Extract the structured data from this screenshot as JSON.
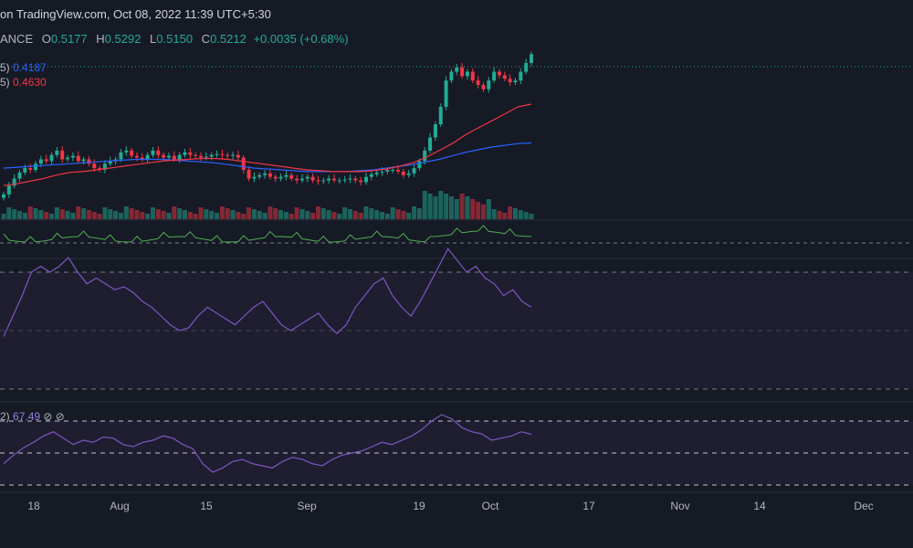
{
  "header": {
    "published": "on TradingView.com, Oct 08, 2022 11:39 UTC+5:30",
    "symbol_fragment": "ANCE",
    "ohlc": [
      {
        "label": "O",
        "value": "0.5177"
      },
      {
        "label": "H",
        "value": "0.5292"
      },
      {
        "label": "L",
        "value": "0.5150"
      },
      {
        "label": "C",
        "value": "0.5212"
      }
    ],
    "change": "+0.0035 (+0.68%)"
  },
  "moving_averages": [
    {
      "label_fragment": "5)",
      "value": "0.4187",
      "color": "#2962ff"
    },
    {
      "label_fragment": "5)",
      "value": "0.4630",
      "color": "#f23645"
    }
  ],
  "stoch_legend": {
    "label_fragment": "2)",
    "value": "67.49",
    "icons": [
      "eye-off-icon",
      "eye-off-icon"
    ]
  },
  "colors": {
    "background": "#161a25",
    "up": "#22ab94",
    "down": "#f23645",
    "ma_slow": "#2962ff",
    "ma_fast": "#f23645",
    "oscillator": "#7e57c2",
    "osc_band": "#26233a",
    "money_flow": "#4caf50"
  },
  "chart_data": {
    "type": "candlestick",
    "x_tick_labels": [
      "18",
      "Aug",
      "15",
      "Sep",
      "19",
      "Oct",
      "17",
      "Nov",
      "14",
      "Dec"
    ],
    "price_range_visible": [
      0.34,
      0.535
    ],
    "last_close": 0.5212,
    "candles_close_approx": [
      0.36,
      0.37,
      0.378,
      0.385,
      0.39,
      0.388,
      0.395,
      0.4,
      0.398,
      0.405,
      0.41,
      0.4,
      0.402,
      0.404,
      0.398,
      0.4,
      0.395,
      0.39,
      0.388,
      0.395,
      0.398,
      0.4,
      0.408,
      0.41,
      0.404,
      0.402,
      0.4,
      0.405,
      0.41,
      0.405,
      0.402,
      0.404,
      0.4,
      0.405,
      0.408,
      0.405,
      0.404,
      0.402,
      0.403,
      0.405,
      0.406,
      0.405,
      0.404,
      0.405,
      0.402,
      0.388,
      0.378,
      0.38,
      0.382,
      0.384,
      0.38,
      0.378,
      0.38,
      0.382,
      0.378,
      0.376,
      0.378,
      0.38,
      0.376,
      0.375,
      0.376,
      0.378,
      0.376,
      0.376,
      0.377,
      0.378,
      0.376,
      0.374,
      0.38,
      0.383,
      0.385,
      0.386,
      0.388,
      0.388,
      0.386,
      0.382,
      0.384,
      0.39,
      0.398,
      0.41,
      0.425,
      0.44,
      0.46,
      0.49,
      0.5,
      0.505,
      0.495,
      0.5,
      0.49,
      0.485,
      0.48,
      0.49,
      0.5,
      0.496,
      0.492,
      0.488,
      0.49,
      0.5,
      0.51,
      0.52
    ],
    "ma_fast_approx": [
      0.37,
      0.372,
      0.375,
      0.378,
      0.382,
      0.385,
      0.386,
      0.388,
      0.39,
      0.392,
      0.394,
      0.396,
      0.398,
      0.399,
      0.4,
      0.401,
      0.401,
      0.4,
      0.398,
      0.396,
      0.394,
      0.392,
      0.39,
      0.388,
      0.387,
      0.386,
      0.386,
      0.386,
      0.387,
      0.389,
      0.392,
      0.396,
      0.402,
      0.41,
      0.418,
      0.428,
      0.436,
      0.444,
      0.452,
      0.46,
      0.463
    ],
    "ma_slow_approx": [
      0.39,
      0.391,
      0.392,
      0.393,
      0.394,
      0.395,
      0.396,
      0.397,
      0.398,
      0.399,
      0.4,
      0.4,
      0.4,
      0.399,
      0.398,
      0.397,
      0.396,
      0.394,
      0.392,
      0.39,
      0.389,
      0.388,
      0.387,
      0.386,
      0.386,
      0.386,
      0.386,
      0.387,
      0.388,
      0.39,
      0.392,
      0.394,
      0.397,
      0.4,
      0.404,
      0.408,
      0.411,
      0.414,
      0.416,
      0.418,
      0.4187
    ],
    "rsi_series_approx": [
      48,
      55,
      62,
      70,
      72,
      70,
      72,
      75,
      70,
      66,
      68,
      66,
      64,
      65,
      63,
      60,
      58,
      55,
      52,
      50,
      51,
      55,
      58,
      56,
      54,
      52,
      55,
      58,
      60,
      56,
      52,
      50,
      52,
      54,
      56,
      52,
      49,
      52,
      58,
      62,
      66,
      68,
      62,
      58,
      55,
      60,
      66,
      72,
      78,
      74,
      70,
      72,
      68,
      66,
      62,
      64,
      60,
      58
    ],
    "stoch_series_approx": [
      40,
      48,
      55,
      60,
      66,
      70,
      64,
      58,
      62,
      60,
      65,
      64,
      58,
      56,
      60,
      62,
      66,
      64,
      58,
      54,
      40,
      32,
      36,
      42,
      44,
      40,
      38,
      36,
      42,
      46,
      44,
      40,
      38,
      44,
      48,
      50,
      52,
      56,
      60,
      58,
      62,
      66,
      72,
      80,
      86,
      82,
      74,
      70,
      68,
      62,
      64,
      66,
      70,
      67.49
    ],
    "stoch_last": 67.49
  }
}
